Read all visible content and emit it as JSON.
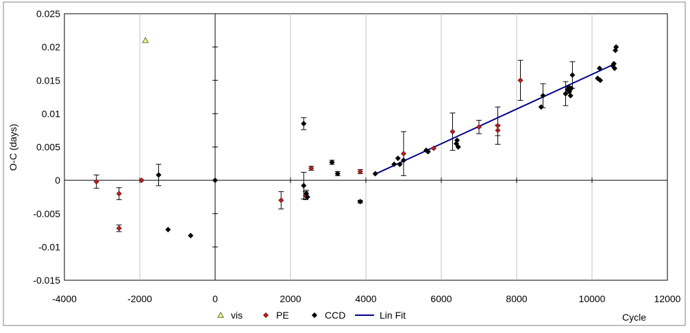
{
  "chart_data": {
    "type": "scatter",
    "title": "",
    "xlabel": "Cycle",
    "ylabel": "O-C  (days)",
    "xlim": [
      -4000,
      12000
    ],
    "ylim": [
      -0.015,
      0.025
    ],
    "x_ticks": [
      "-4000",
      "-2000",
      "0",
      "2000",
      "4000",
      "6000",
      "8000",
      "10000",
      "12000"
    ],
    "y_ticks": [
      "0.025",
      "0.02",
      "0.015",
      "0.01",
      "0.005",
      "0",
      "-0.005",
      "-0.01",
      "-0.015"
    ],
    "grid": "vertical",
    "legend_position": "bottom",
    "colors": {
      "vis_fill": "#ffff99",
      "vis_stroke": "#556b2f",
      "pe": "#b22222",
      "ccd": "#000000",
      "fit": "#00008b",
      "grid": "#c0c0c0"
    },
    "series": [
      {
        "name": "vis",
        "marker": "triangle",
        "points": [
          {
            "x": -1850,
            "y": 0.021
          }
        ]
      },
      {
        "name": "PE",
        "marker": "diamond",
        "points": [
          {
            "x": -3150,
            "y": -0.0002,
            "err": 0.001
          },
          {
            "x": -2550,
            "y": -0.002,
            "err": 0.0009
          },
          {
            "x": -2550,
            "y": -0.0072,
            "err": 0.0005
          },
          {
            "x": -1950,
            "y": 0.0
          },
          {
            "x": 1750,
            "y": -0.003,
            "err": 0.0013
          },
          {
            "x": 2400,
            "y": -0.0023,
            "err": 0.0006
          },
          {
            "x": 2550,
            "y": 0.0018,
            "err": 0.0003
          },
          {
            "x": 3850,
            "y": 0.0013,
            "err": 0.0003
          },
          {
            "x": 5000,
            "y": 0.004,
            "err": 0.0033
          },
          {
            "x": 5800,
            "y": 0.0048
          },
          {
            "x": 6300,
            "y": 0.0073,
            "err": 0.0028
          },
          {
            "x": 7000,
            "y": 0.008,
            "err": 0.001
          },
          {
            "x": 7500,
            "y": 0.0082,
            "err": 0.0028
          },
          {
            "x": 7500,
            "y": 0.0075,
            "err": 0.0008
          },
          {
            "x": 8100,
            "y": 0.015,
            "err": 0.003
          }
        ]
      },
      {
        "name": "CCD",
        "marker": "diamond",
        "points": [
          {
            "x": -1500,
            "y": 0.0008,
            "err": 0.0016
          },
          {
            "x": -1250,
            "y": -0.0074
          },
          {
            "x": -650,
            "y": -0.0083
          },
          {
            "x": 0,
            "y": 0.0
          },
          {
            "x": 2350,
            "y": -0.0008,
            "err": 0.002
          },
          {
            "x": 2350,
            "y": 0.0085,
            "err": 0.0009
          },
          {
            "x": 2420,
            "y": -0.002,
            "err": 0.0005
          },
          {
            "x": 2450,
            "y": -0.0025
          },
          {
            "x": 3100,
            "y": 0.0027,
            "err": 0.0003
          },
          {
            "x": 3250,
            "y": 0.001,
            "err": 0.0003
          },
          {
            "x": 3850,
            "y": -0.0032,
            "err": 0.0002
          },
          {
            "x": 4250,
            "y": 0.001
          },
          {
            "x": 4750,
            "y": 0.0024
          },
          {
            "x": 4850,
            "y": 0.0033
          },
          {
            "x": 4900,
            "y": 0.0024
          },
          {
            "x": 5000,
            "y": 0.003
          },
          {
            "x": 5600,
            "y": 0.0045
          },
          {
            "x": 5650,
            "y": 0.0043
          },
          {
            "x": 6400,
            "y": 0.0055
          },
          {
            "x": 6420,
            "y": 0.006
          },
          {
            "x": 6450,
            "y": 0.005
          },
          {
            "x": 8650,
            "y": 0.011
          },
          {
            "x": 8700,
            "y": 0.0127,
            "err": 0.0018
          },
          {
            "x": 9300,
            "y": 0.013,
            "err": 0.0018
          },
          {
            "x": 9350,
            "y": 0.0136
          },
          {
            "x": 9380,
            "y": 0.014
          },
          {
            "x": 9400,
            "y": 0.0133
          },
          {
            "x": 9430,
            "y": 0.0127
          },
          {
            "x": 9450,
            "y": 0.0138
          },
          {
            "x": 9480,
            "y": 0.0158,
            "err": 0.002
          },
          {
            "x": 10150,
            "y": 0.0153
          },
          {
            "x": 10200,
            "y": 0.0168
          },
          {
            "x": 10220,
            "y": 0.015
          },
          {
            "x": 10550,
            "y": 0.0172
          },
          {
            "x": 10580,
            "y": 0.0175
          },
          {
            "x": 10600,
            "y": 0.0168
          },
          {
            "x": 10620,
            "y": 0.0195
          },
          {
            "x": 10640,
            "y": 0.02
          }
        ]
      },
      {
        "name": "Lin Fit",
        "type": "line",
        "points": [
          {
            "x": 4200,
            "y": 0.0008
          },
          {
            "x": 10500,
            "y": 0.0172
          }
        ]
      }
    ]
  }
}
